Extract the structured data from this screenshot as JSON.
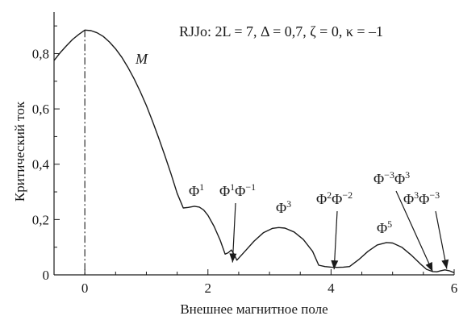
{
  "chart_data": {
    "type": "line",
    "title": "",
    "xlabel": "Внешнее магнитное поле",
    "ylabel": "Критический ток",
    "xlim": [
      -0.5,
      6
    ],
    "ylim": [
      0,
      0.95
    ],
    "grid": false,
    "xticks": [
      {
        "value": 0,
        "label": "0"
      },
      {
        "value": 2,
        "label": "2"
      },
      {
        "value": 4,
        "label": "4"
      },
      {
        "value": 6,
        "label": "6"
      }
    ],
    "yticks": [
      {
        "value": 0,
        "label": "0"
      },
      {
        "value": 0.2,
        "label": "0,2"
      },
      {
        "value": 0.4,
        "label": "0,4"
      },
      {
        "value": 0.6,
        "label": "0,6"
      },
      {
        "value": 0.8,
        "label": "0,8"
      }
    ],
    "x_minor_step": 0.5,
    "y_minor_step": 0.1,
    "reference_line": {
      "x": 0,
      "style": "dash-dot"
    },
    "series": [
      {
        "points": [
          [
            -0.5,
            0.775
          ],
          [
            -0.4,
            0.803
          ],
          [
            -0.3,
            0.828
          ],
          [
            -0.2,
            0.851
          ],
          [
            -0.1,
            0.869
          ],
          [
            0,
            0.885
          ],
          [
            0.1,
            0.883
          ],
          [
            0.2,
            0.875
          ],
          [
            0.3,
            0.862
          ],
          [
            0.4,
            0.842
          ],
          [
            0.5,
            0.817
          ],
          [
            0.6,
            0.787
          ],
          [
            0.7,
            0.75
          ],
          [
            0.8,
            0.709
          ],
          [
            0.9,
            0.663
          ],
          [
            1.0,
            0.612
          ],
          [
            1.1,
            0.555
          ],
          [
            1.2,
            0.495
          ],
          [
            1.3,
            0.431
          ],
          [
            1.4,
            0.365
          ],
          [
            1.5,
            0.295
          ],
          [
            1.6,
            0.242
          ],
          [
            1.68,
            0.244
          ],
          [
            1.78,
            0.248
          ],
          [
            1.86,
            0.245
          ],
          [
            1.93,
            0.235
          ],
          [
            2.0,
            0.215
          ],
          [
            2.1,
            0.175
          ],
          [
            2.2,
            0.125
          ],
          [
            2.28,
            0.075
          ],
          [
            2.33,
            0.08
          ],
          [
            2.38,
            0.09
          ],
          [
            2.43,
            0.072
          ],
          [
            2.47,
            0.053
          ],
          [
            2.6,
            0.085
          ],
          [
            2.75,
            0.122
          ],
          [
            2.9,
            0.152
          ],
          [
            3.05,
            0.168
          ],
          [
            3.15,
            0.171
          ],
          [
            3.25,
            0.169
          ],
          [
            3.4,
            0.155
          ],
          [
            3.55,
            0.128
          ],
          [
            3.7,
            0.085
          ],
          [
            3.8,
            0.035
          ],
          [
            3.9,
            0.03
          ],
          [
            4.0,
            0.028
          ],
          [
            4.1,
            0.027
          ],
          [
            4.2,
            0.028
          ],
          [
            4.3,
            0.03
          ],
          [
            4.45,
            0.055
          ],
          [
            4.6,
            0.085
          ],
          [
            4.75,
            0.108
          ],
          [
            4.9,
            0.117
          ],
          [
            5.0,
            0.115
          ],
          [
            5.15,
            0.1
          ],
          [
            5.3,
            0.072
          ],
          [
            5.45,
            0.04
          ],
          [
            5.55,
            0.02
          ],
          [
            5.65,
            0.012
          ],
          [
            5.72,
            0.011
          ],
          [
            5.78,
            0.015
          ],
          [
            5.85,
            0.018
          ],
          [
            5.92,
            0.015
          ],
          [
            6.0,
            0.008
          ]
        ]
      }
    ],
    "annotations": [
      {
        "id": "parameters",
        "text": "RJJo: 2L = 7, Δ = 0,7, ζ = 0, κ = –1"
      },
      {
        "id": "m-label",
        "text": "M"
      },
      {
        "id": "phi1",
        "text": "Φ¹"
      },
      {
        "id": "phi1-phi-1",
        "text": "Φ¹Φ⁻¹",
        "arrow_to": [
          2.4,
          0.045
        ]
      },
      {
        "id": "phi3",
        "text": "Φ³"
      },
      {
        "id": "phi2-phi-2",
        "text": "Φ²Φ⁻²",
        "arrow_to": [
          4.05,
          0.02
        ]
      },
      {
        "id": "phi5",
        "text": "Φ⁵"
      },
      {
        "id": "phi-3-phi3",
        "text": "Φ⁻³Φ³",
        "arrow_to": [
          5.65,
          0.012
        ]
      },
      {
        "id": "phi3-phi-3",
        "text": "Φ³Φ⁻³",
        "arrow_to": [
          5.88,
          0.022
        ]
      }
    ]
  }
}
